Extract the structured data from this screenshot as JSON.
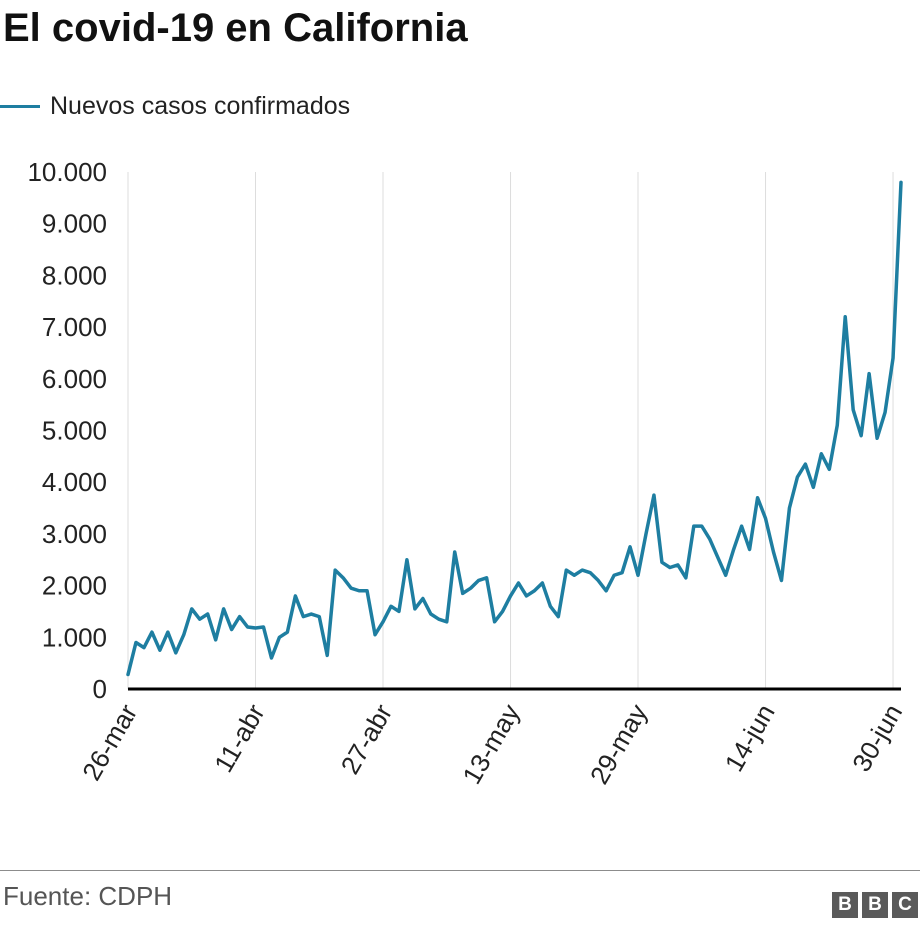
{
  "header": {
    "title": "El covid-19 en California"
  },
  "footer": {
    "source": "Fuente: CDPH",
    "logo": {
      "name": "bbc-logo",
      "letters": [
        "B",
        "B",
        "C"
      ]
    }
  },
  "colors": {
    "series": "#1e7ea1",
    "axis": "#000000",
    "gridline": "#dddddd",
    "text": "#222222"
  },
  "chart_data": {
    "type": "line",
    "title": "El covid-19 en California",
    "xlabel": "",
    "ylabel": "",
    "ylim": [
      0,
      10000
    ],
    "yticks": [
      0,
      1000,
      2000,
      3000,
      4000,
      5000,
      6000,
      7000,
      8000,
      9000,
      10000
    ],
    "ytick_labels": [
      "0",
      "1.000",
      "2.000",
      "3.000",
      "4.000",
      "5.000",
      "6.000",
      "7.000",
      "8.000",
      "9.000",
      "10.000"
    ],
    "xtick_labels": [
      "26-mar",
      "11-abr",
      "27-abr",
      "13-may",
      "29-may",
      "14-jun",
      "30-jun"
    ],
    "xtick_index": [
      0,
      16,
      32,
      48,
      64,
      80,
      96
    ],
    "grid": "vertical",
    "legend": "top-left",
    "series": [
      {
        "name": "Nuevos casos confirmados",
        "color": "#1e7ea1",
        "values": [
          280,
          900,
          800,
          1100,
          750,
          1100,
          700,
          1050,
          1550,
          1350,
          1450,
          950,
          1550,
          1150,
          1400,
          1200,
          1180,
          1200,
          600,
          1000,
          1100,
          1800,
          1400,
          1450,
          1400,
          650,
          2300,
          2150,
          1950,
          1900,
          1900,
          1050,
          1300,
          1600,
          1500,
          2500,
          1550,
          1750,
          1450,
          1350,
          1300,
          2650,
          1850,
          1950,
          2100,
          2150,
          1300,
          1500,
          1800,
          2050,
          1800,
          1900,
          2050,
          1600,
          1400,
          2300,
          2200,
          2300,
          2250,
          2100,
          1900,
          2200,
          2250,
          2750,
          2200,
          3000,
          3750,
          2450,
          2350,
          2400,
          2150,
          3150,
          3150,
          2900,
          2550,
          2200,
          2700,
          3150,
          2700,
          3700,
          3300,
          2650,
          2100,
          3500,
          4100,
          4350,
          3900,
          4550,
          4250,
          5100,
          7200,
          5400,
          4900,
          6100,
          4850,
          5350,
          6400,
          9800
        ]
      }
    ]
  }
}
